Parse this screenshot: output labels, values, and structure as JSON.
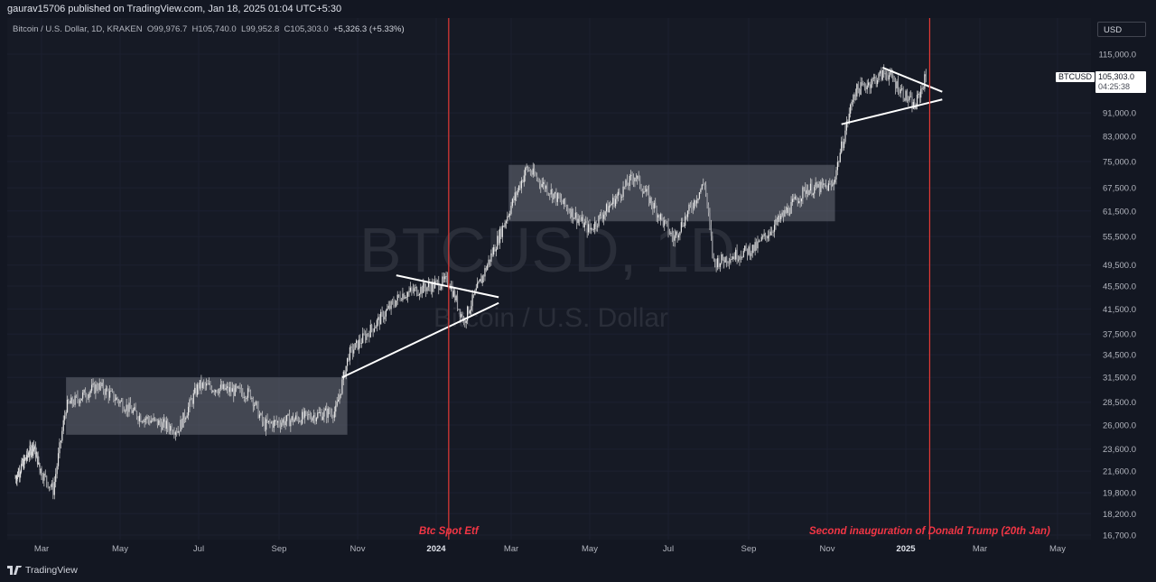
{
  "header": {
    "published": "gaurav15706 published on TradingView.com, Jan 18, 2025 01:04 UTC+5:30",
    "symbol_desc": "Bitcoin / U.S. Dollar, 1D, KRAKEN",
    "open_label": "O",
    "open": "99,976.7",
    "high_label": "H",
    "high": "105,740.0",
    "low_label": "L",
    "low": "99,952.8",
    "close_label": "C",
    "close": "105,303.0",
    "change": "+5,326.3 (+5.33%)"
  },
  "currency": "USD",
  "watermark": {
    "symbol": "BTCUSD, 1D",
    "name": "Bitcoin / U.S. Dollar"
  },
  "price_label": {
    "symbol": "BTCUSD",
    "price": "105,303.0",
    "countdown": "04:25:38"
  },
  "brand": "TradingView",
  "colors": {
    "background": "#161a25",
    "candles": "#d8d8d8",
    "event_line": "#e53935",
    "annotation": "#f23645",
    "box": "#6a6d78"
  },
  "chart_data": {
    "type": "candlestick",
    "symbol": "BTCUSD",
    "timeframe": "1D",
    "x_ticks": [
      "Mar",
      "May",
      "Jul",
      "Sep",
      "Nov",
      "2024",
      "Mar",
      "May",
      "Jul",
      "Sep",
      "Nov",
      "2025",
      "Mar",
      "May"
    ],
    "y_ticks": [
      "115,000.0",
      "91,000.0",
      "83,000.0",
      "75,000.0",
      "67,500.0",
      "61,500.0",
      "55,500.0",
      "49,500.0",
      "45,500.0",
      "41,500.0",
      "37,500.0",
      "34,500.0",
      "31,500.0",
      "28,500.0",
      "26,000.0",
      "23,600.0",
      "21,600.0",
      "19,800.0",
      "18,200.0",
      "16,700.0"
    ],
    "y_scale": "log",
    "last_price": 105303.0,
    "price_path": [
      {
        "date": "2023-01-15",
        "price": 21000
      },
      {
        "date": "2023-02-15",
        "price": 24000
      },
      {
        "date": "2023-03-10",
        "price": 20000
      },
      {
        "date": "2023-03-20",
        "price": 28000
      },
      {
        "date": "2023-04-14",
        "price": 30500
      },
      {
        "date": "2023-05-15",
        "price": 27000
      },
      {
        "date": "2023-06-15",
        "price": 25500
      },
      {
        "date": "2023-07-01",
        "price": 30500
      },
      {
        "date": "2023-08-10",
        "price": 29500
      },
      {
        "date": "2023-08-20",
        "price": 26000
      },
      {
        "date": "2023-10-15",
        "price": 27500
      },
      {
        "date": "2023-10-25",
        "price": 34500
      },
      {
        "date": "2023-12-05",
        "price": 44000
      },
      {
        "date": "2024-01-11",
        "price": 46500
      },
      {
        "date": "2024-01-23",
        "price": 39500
      },
      {
        "date": "2024-02-15",
        "price": 52000
      },
      {
        "date": "2024-03-13",
        "price": 73000
      },
      {
        "date": "2024-05-01",
        "price": 57000
      },
      {
        "date": "2024-06-05",
        "price": 71000
      },
      {
        "date": "2024-07-05",
        "price": 55000
      },
      {
        "date": "2024-07-29",
        "price": 69000
      },
      {
        "date": "2024-08-05",
        "price": 50000
      },
      {
        "date": "2024-09-06",
        "price": 53000
      },
      {
        "date": "2024-10-15",
        "price": 67000
      },
      {
        "date": "2024-11-05",
        "price": 68000
      },
      {
        "date": "2024-11-22",
        "price": 99000
      },
      {
        "date": "2024-12-17",
        "price": 107000
      },
      {
        "date": "2025-01-08",
        "price": 93000
      },
      {
        "date": "2025-01-17",
        "price": 105303
      }
    ],
    "consolidation_boxes": [
      {
        "start": "2023-03-20",
        "end": "2023-10-24",
        "low": 25000,
        "high": 31500
      },
      {
        "start": "2024-02-28",
        "end": "2024-11-07",
        "low": 59000,
        "high": 74000
      }
    ],
    "trend_lines": [
      {
        "x1": "2023-10-20",
        "y1": 31500,
        "x2": "2024-02-20",
        "y2": 42500
      },
      {
        "x1": "2023-12-01",
        "y1": 47500,
        "x2": "2024-02-20",
        "y2": 43500
      },
      {
        "x1": "2024-11-12",
        "y1": 87000,
        "x2": "2025-01-30",
        "y2": 96000
      },
      {
        "x1": "2024-12-14",
        "y1": 109000,
        "x2": "2025-01-30",
        "y2": 99000
      }
    ],
    "events": [
      {
        "date": "2024-01-11",
        "label": "Btc Spot Etf"
      },
      {
        "date": "2025-01-20",
        "label": "Second inauguration of Donald Trump (20th Jan)"
      }
    ]
  }
}
